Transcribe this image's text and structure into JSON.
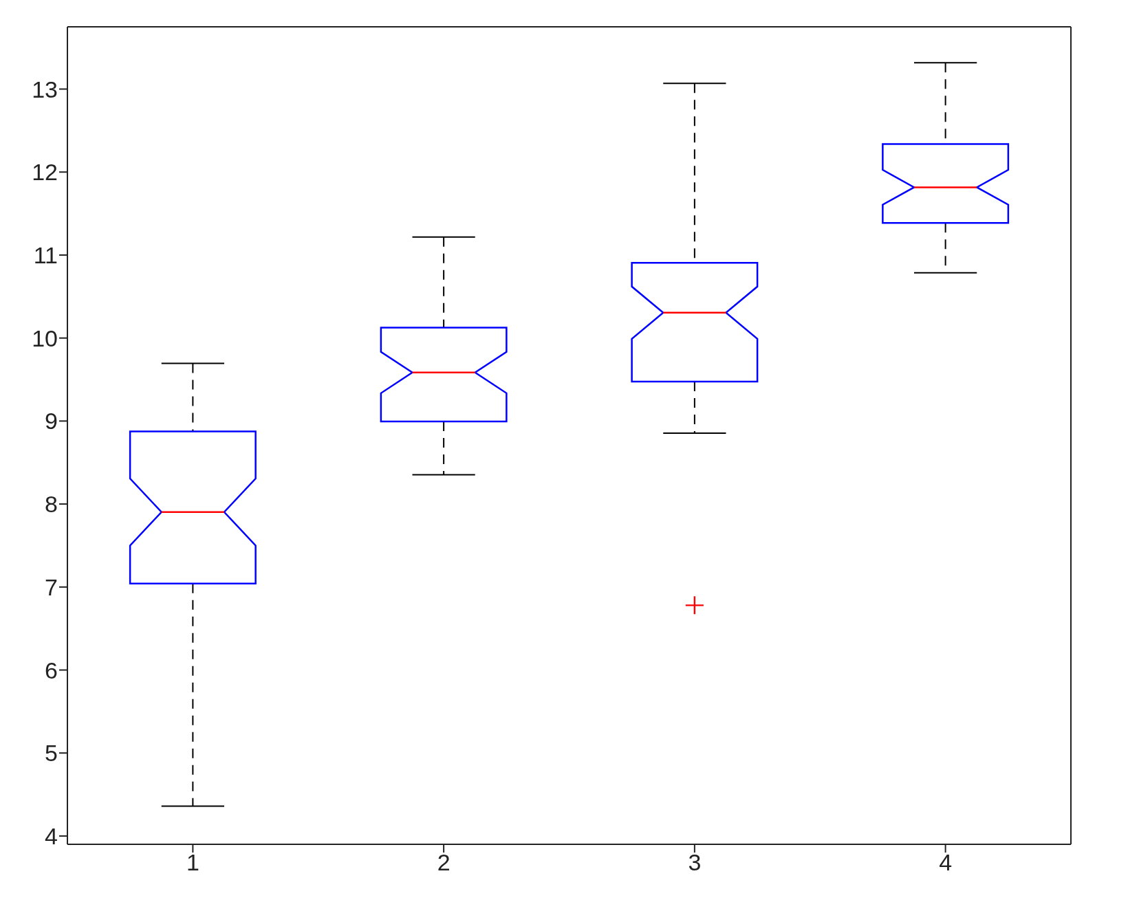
{
  "chart_data": {
    "type": "box",
    "categories": [
      "1",
      "2",
      "3",
      "4"
    ],
    "color": "#0000ff",
    "ylim": [
      3.9,
      13.75
    ],
    "yticks": [
      4,
      5,
      6,
      7,
      8,
      9,
      10,
      11,
      12,
      13
    ],
    "grid": false,
    "marker": "cross",
    "boxes": [
      {
        "low": 4.36,
        "q1": 7.04,
        "median": 7.9,
        "q3": 8.87,
        "high": 9.69
      },
      {
        "low": 8.35,
        "q1": 8.99,
        "median": 9.58,
        "q3": 10.12,
        "high": 11.21
      },
      {
        "low": 8.85,
        "q1": 9.47,
        "median": 10.3,
        "q3": 10.9,
        "high": 13.06,
        "outliers": [
          6.78
        ]
      },
      {
        "low": 10.78,
        "q1": 11.38,
        "median": 11.81,
        "q3": 12.33,
        "high": 13.31
      }
    ]
  }
}
